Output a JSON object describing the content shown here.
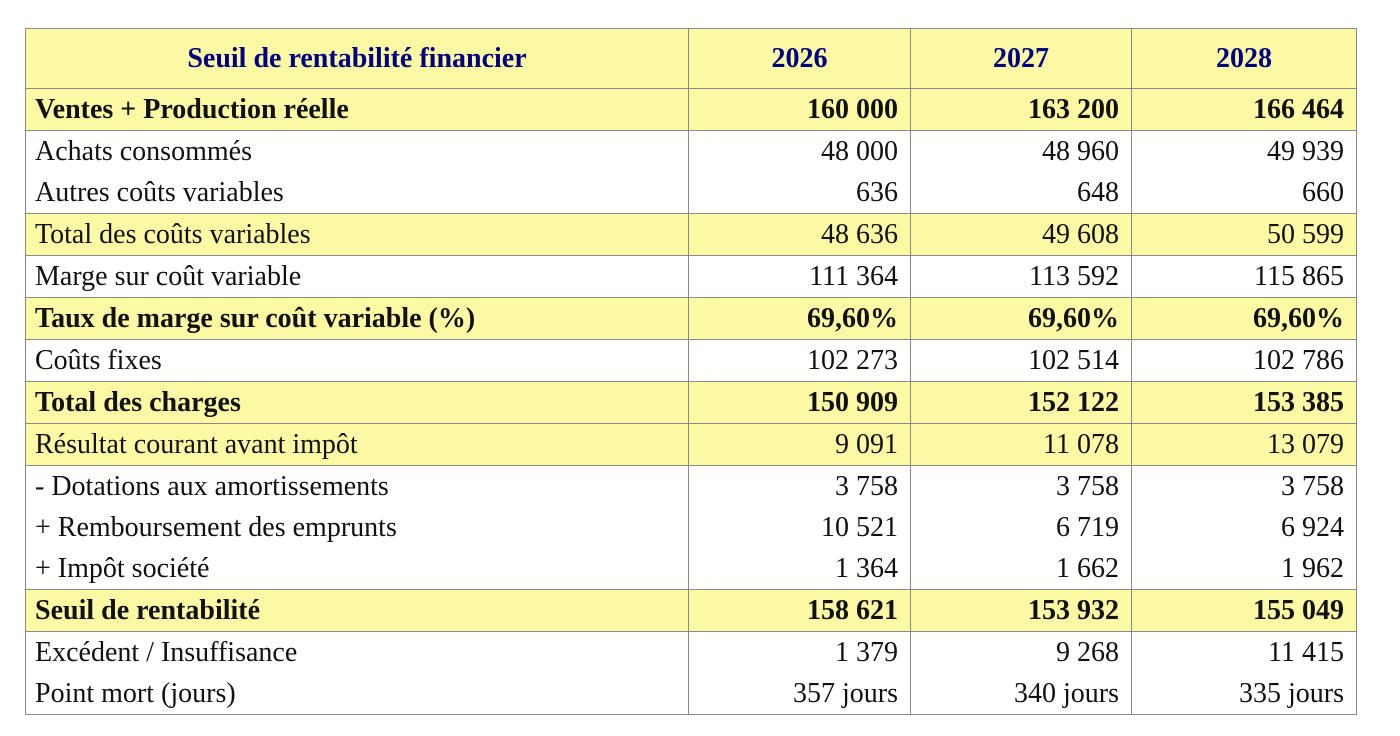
{
  "table": {
    "header": [
      "Seuil de rentabilité financier",
      "2026",
      "2027",
      "2028"
    ],
    "rows": [
      {
        "cells": [
          "Ventes + Production réelle",
          "160 000",
          "163 200",
          "166 464"
        ],
        "highlight": true,
        "bold": true
      },
      {
        "cells": [
          "Achats consommés",
          "48 000",
          "48 960",
          "49 939"
        ],
        "highlight": false,
        "bold": false
      },
      {
        "cells": [
          "Autres coûts variables",
          "636",
          "648",
          "660"
        ],
        "highlight": false,
        "bold": false
      },
      {
        "cells": [
          "Total des coûts variables",
          "48 636",
          "49 608",
          "50 599"
        ],
        "highlight": true,
        "bold": false
      },
      {
        "cells": [
          "Marge sur coût variable",
          "111 364",
          "113 592",
          "115 865"
        ],
        "highlight": false,
        "bold": false
      },
      {
        "cells": [
          "Taux de marge sur coût variable (%)",
          "69,60%",
          "69,60%",
          "69,60%"
        ],
        "highlight": true,
        "bold": true
      },
      {
        "cells": [
          "Coûts fixes",
          "102 273",
          "102 514",
          "102 786"
        ],
        "highlight": false,
        "bold": false
      },
      {
        "cells": [
          "Total des charges",
          "150 909",
          "152 122",
          "153 385"
        ],
        "highlight": true,
        "bold": true
      },
      {
        "cells": [
          "Résultat courant avant impôt",
          "9 091",
          "11 078",
          "13 079"
        ],
        "highlight": true,
        "bold": false
      },
      {
        "cells": [
          "- Dotations aux amortissements",
          "3 758",
          "3 758",
          "3 758"
        ],
        "highlight": false,
        "bold": false
      },
      {
        "cells": [
          "+ Remboursement des emprunts",
          "10 521",
          "6 719",
          "6 924"
        ],
        "highlight": false,
        "bold": false
      },
      {
        "cells": [
          "+ Impôt société",
          "1 364",
          "1 662",
          "1 962"
        ],
        "highlight": false,
        "bold": false
      },
      {
        "cells": [
          "Seuil de rentabilité",
          "158 621",
          "153 932",
          "155 049"
        ],
        "highlight": true,
        "bold": true
      },
      {
        "cells": [
          "Excédent / Insuffisance",
          "1 379",
          "9 268",
          "11 415"
        ],
        "highlight": false,
        "bold": false
      },
      {
        "cells": [
          "Point mort (jours)",
          "357 jours",
          "340 jours",
          "335 jours"
        ],
        "highlight": false,
        "bold": false
      }
    ]
  }
}
